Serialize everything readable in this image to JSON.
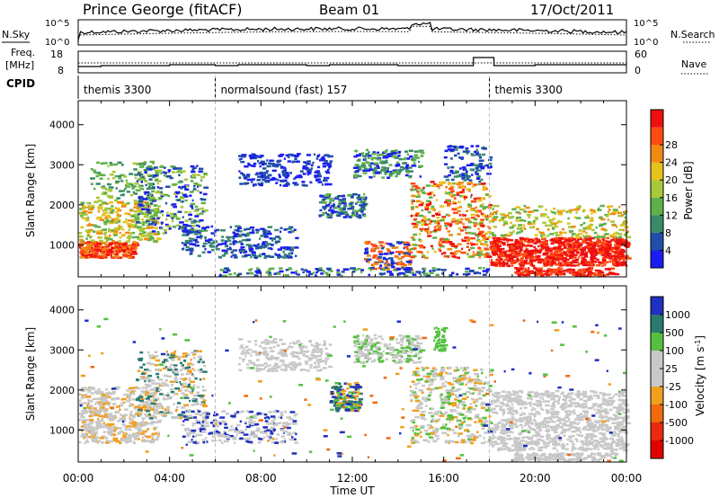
{
  "header": {
    "station": "Prince George (fitACF)",
    "beam": "Beam 01",
    "date": "17/Oct/2011"
  },
  "noise_panel": {
    "left_label": "N.Sky",
    "left_ticks": [
      "10^5",
      "10^0"
    ],
    "right_ticks": [
      "10^5",
      "10^0"
    ],
    "right_label": "N.Search",
    "right_legend_style": "dotted"
  },
  "freq_panel": {
    "left_label_line1": "Freq.",
    "left_label_line2": "[MHz]",
    "left_ticks": [
      "18",
      "8"
    ],
    "right_ticks": [
      "60",
      "0"
    ],
    "right_label": "Nave",
    "right_legend_style": "dotted"
  },
  "cpid": {
    "label": "CPID",
    "segments": [
      {
        "start_hour": 0,
        "end_hour": 6,
        "name": "themis 3300"
      },
      {
        "start_hour": 6,
        "end_hour": 18,
        "name": "normalsound (fast) 157"
      },
      {
        "start_hour": 18,
        "end_hour": 24,
        "name": "themis 3300"
      }
    ]
  },
  "time_axis": {
    "label": "Time UT",
    "ticks": [
      "00:00",
      "04:00",
      "08:00",
      "12:00",
      "16:00",
      "20:00",
      "00:00"
    ],
    "range_hours": [
      0,
      24
    ]
  },
  "chart_data": [
    {
      "type": "heatmap",
      "id": "power",
      "ylabel": "Slant Range [km]",
      "yticks": [
        "1000",
        "2000",
        "3000",
        "4000"
      ],
      "ylim": [
        200,
        4600
      ],
      "colorbar": {
        "label": "Power [dB]",
        "ticks": [
          "4",
          "8",
          "12",
          "16",
          "20",
          "24",
          "28"
        ],
        "colors": [
          "#1c1cf0",
          "#1f4fa8",
          "#3a8a6a",
          "#5fb04b",
          "#a7c93a",
          "#e6c21e",
          "#f08a14",
          "#ff4a10",
          "#ee1010"
        ]
      }
    },
    {
      "type": "heatmap",
      "id": "velocity",
      "ylabel": "Slant Range [km]",
      "yticks": [
        "1000",
        "2000",
        "3000",
        "4000"
      ],
      "ylim": [
        200,
        4600
      ],
      "colorbar": {
        "label": "Velocity [m s^-1]",
        "ticks": [
          "1000",
          "500",
          "100",
          "25",
          "-25",
          "-100",
          "-500",
          "-1000"
        ],
        "colors": [
          "#2030c0",
          "#2a7a70",
          "#55c040",
          "#c8c8c8",
          "#c8c8c8",
          "#f0a020",
          "#f06a10",
          "#e82a10",
          "#e00000"
        ]
      }
    }
  ]
}
